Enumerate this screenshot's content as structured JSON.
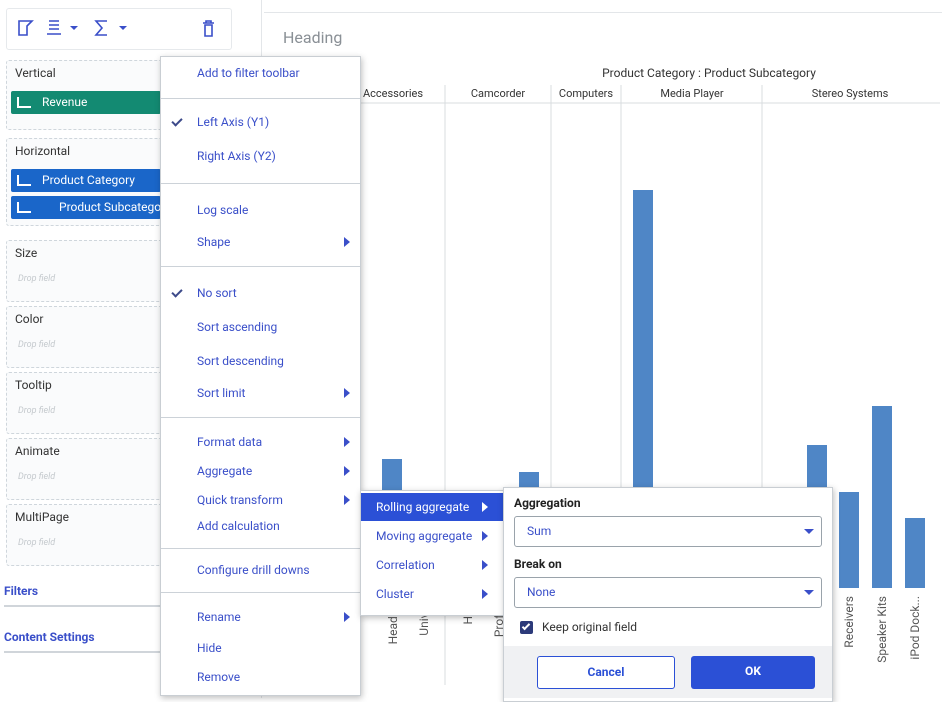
{
  "sidebar": {
    "sections": [
      {
        "title": "Vertical",
        "fields": [
          {
            "label": "Revenue",
            "color": "#138a72"
          }
        ]
      },
      {
        "title": "Horizontal",
        "fields": [
          {
            "label": "Product Category",
            "color": "#1a66c9"
          },
          {
            "label": "Product Subcategory",
            "color": "#1a66c9"
          }
        ]
      },
      {
        "title": "Size",
        "placeholder": "Drop field"
      },
      {
        "title": "Color",
        "placeholder": "Drop field"
      },
      {
        "title": "Tooltip",
        "placeholder": "Drop field"
      },
      {
        "title": "Animate",
        "placeholder": "Drop field"
      },
      {
        "title": "MultiPage",
        "placeholder": "Drop field"
      }
    ],
    "links": [
      "Filters",
      "Content Settings"
    ]
  },
  "canvas": {
    "heading": "Heading",
    "chart": {
      "type": "bar",
      "title": "Product Category : Product Subcategory",
      "groups": [
        "Accessories",
        "Camcorder",
        "Computers",
        "Media Player",
        "Stereo Systems"
      ],
      "labels": [
        "Headpho",
        "Univers",
        "Hand",
        "Profess",
        "Receivers",
        "Speaker Kits",
        "iPod Dock..."
      ],
      "values": [
        129,
        116,
        398,
        143,
        96,
        182,
        70
      ],
      "color": "#4f86c6"
    }
  },
  "context_menu": {
    "groups": [
      [
        {
          "label": "Add to filter toolbar"
        }
      ],
      [
        {
          "label": "Left Axis (Y1)",
          "checked": true
        },
        {
          "label": "Right Axis (Y2)"
        }
      ],
      [
        {
          "label": "Log scale"
        },
        {
          "label": "Shape",
          "submenu": true
        }
      ],
      [
        {
          "label": "No sort",
          "checked": true
        },
        {
          "label": "Sort ascending"
        },
        {
          "label": "Sort descending"
        },
        {
          "label": "Sort limit",
          "submenu": true
        }
      ],
      [
        {
          "label": "Format data",
          "submenu": true
        },
        {
          "label": "Aggregate",
          "submenu": true
        },
        {
          "label": "Quick transform",
          "submenu": true
        },
        {
          "label": "Add calculation"
        }
      ],
      [
        {
          "label": "Configure drill downs"
        }
      ],
      [
        {
          "label": "Rename",
          "submenu": true
        },
        {
          "label": "Hide"
        },
        {
          "label": "Remove"
        }
      ]
    ]
  },
  "submenu": {
    "items": [
      {
        "label": "Rolling aggregate",
        "active": true
      },
      {
        "label": "Moving aggregate"
      },
      {
        "label": "Correlation"
      },
      {
        "label": "Cluster"
      }
    ]
  },
  "aggregate_panel": {
    "aggregation_label": "Aggregation",
    "aggregation": "Sum",
    "break_on_label": "Break on",
    "break_on": "None",
    "keep_original": {
      "label": "Keep original field",
      "checked": true
    },
    "cancel": "Cancel",
    "ok": "OK"
  }
}
